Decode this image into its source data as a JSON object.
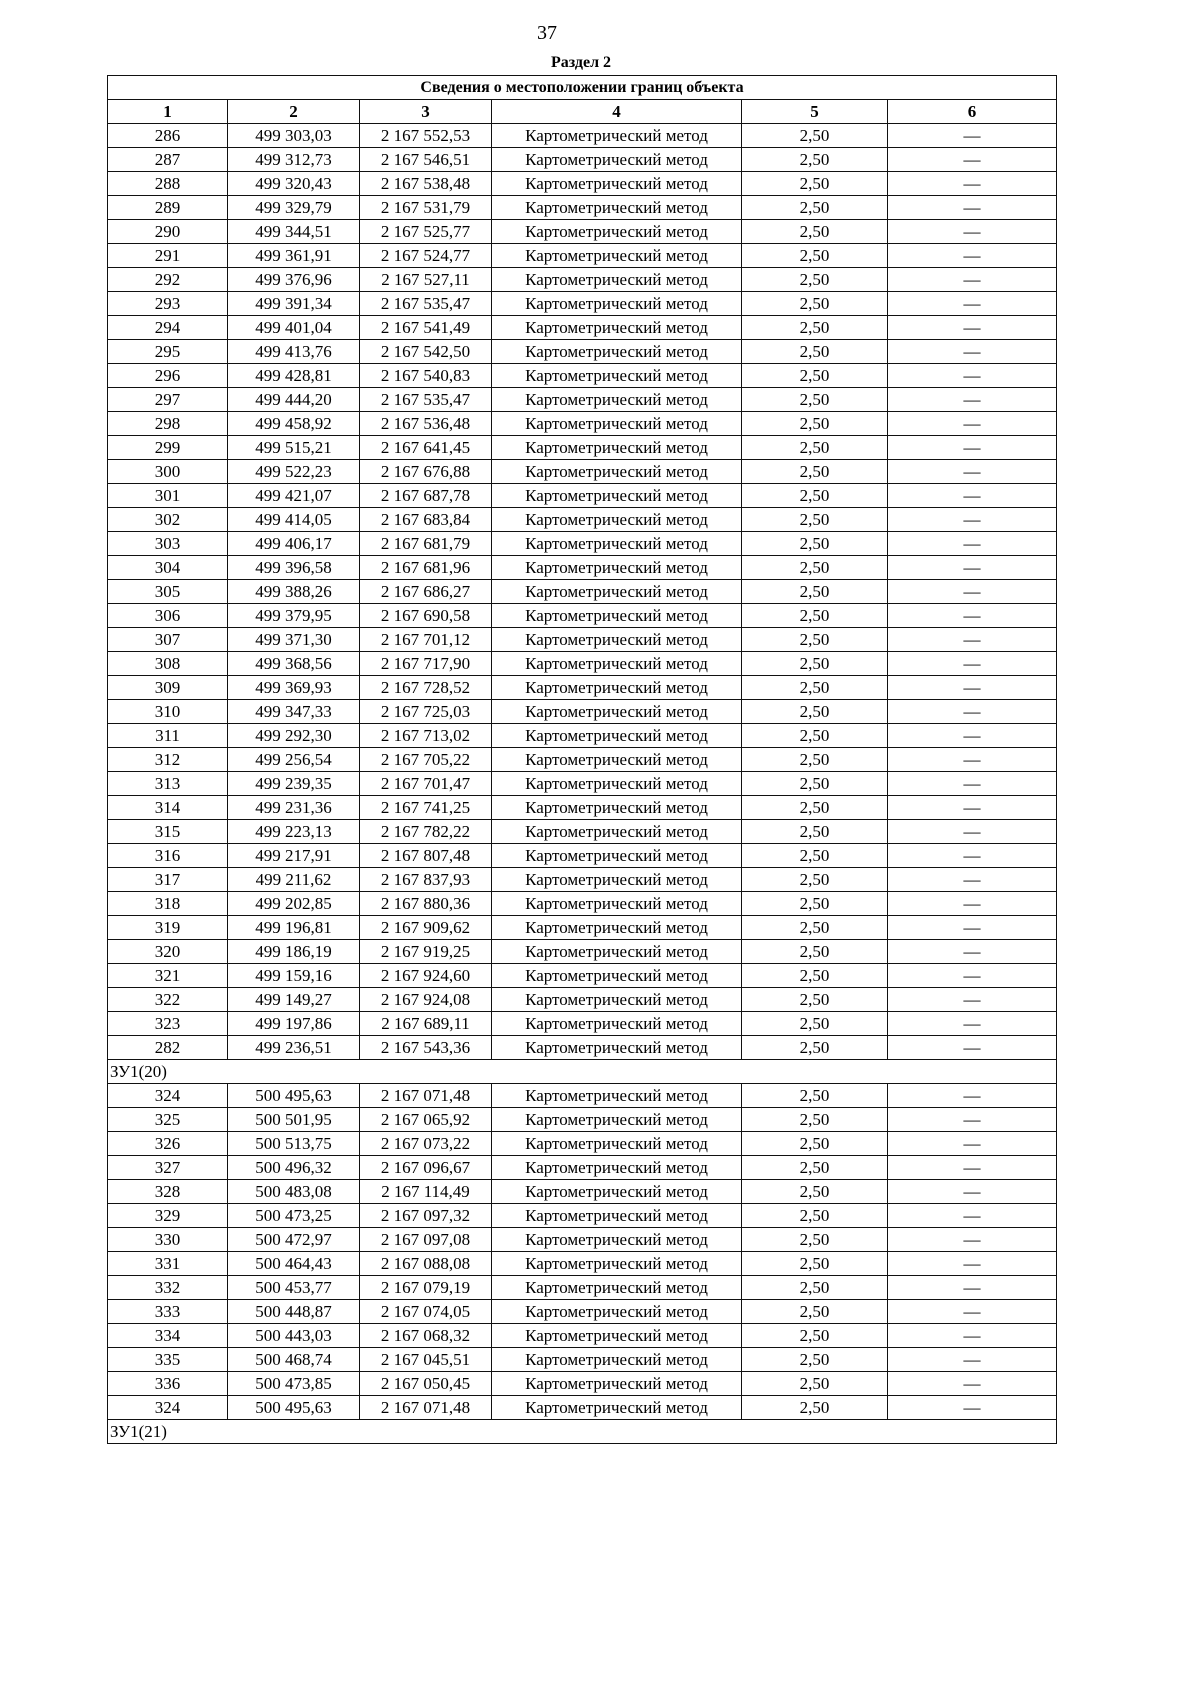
{
  "page_number": "37",
  "section": "Раздел 2",
  "table_title": "Сведения о местоположении границ объекта",
  "column_numbers": [
    "1",
    "2",
    "3",
    "4",
    "5",
    "6"
  ],
  "blocks": [
    {
      "group": null,
      "rows": [
        [
          "286",
          "499 303,03",
          "2 167 552,53",
          "Картометрический метод",
          "2,50",
          "—"
        ],
        [
          "287",
          "499 312,73",
          "2 167 546,51",
          "Картометрический метод",
          "2,50",
          "—"
        ],
        [
          "288",
          "499 320,43",
          "2 167 538,48",
          "Картометрический метод",
          "2,50",
          "—"
        ],
        [
          "289",
          "499 329,79",
          "2 167 531,79",
          "Картометрический метод",
          "2,50",
          "—"
        ],
        [
          "290",
          "499 344,51",
          "2 167 525,77",
          "Картометрический метод",
          "2,50",
          "—"
        ],
        [
          "291",
          "499 361,91",
          "2 167 524,77",
          "Картометрический метод",
          "2,50",
          "—"
        ],
        [
          "292",
          "499 376,96",
          "2 167 527,11",
          "Картометрический метод",
          "2,50",
          "—"
        ],
        [
          "293",
          "499 391,34",
          "2 167 535,47",
          "Картометрический метод",
          "2,50",
          "—"
        ],
        [
          "294",
          "499 401,04",
          "2 167 541,49",
          "Картометрический метод",
          "2,50",
          "—"
        ],
        [
          "295",
          "499 413,76",
          "2 167 542,50",
          "Картометрический метод",
          "2,50",
          "—"
        ],
        [
          "296",
          "499 428,81",
          "2 167 540,83",
          "Картометрический метод",
          "2,50",
          "—"
        ],
        [
          "297",
          "499 444,20",
          "2 167 535,47",
          "Картометрический метод",
          "2,50",
          "—"
        ],
        [
          "298",
          "499 458,92",
          "2 167 536,48",
          "Картометрический метод",
          "2,50",
          "—"
        ],
        [
          "299",
          "499 515,21",
          "2 167 641,45",
          "Картометрический метод",
          "2,50",
          "—"
        ],
        [
          "300",
          "499 522,23",
          "2 167 676,88",
          "Картометрический метод",
          "2,50",
          "—"
        ],
        [
          "301",
          "499 421,07",
          "2 167 687,78",
          "Картометрический метод",
          "2,50",
          "—"
        ],
        [
          "302",
          "499 414,05",
          "2 167 683,84",
          "Картометрический метод",
          "2,50",
          "—"
        ],
        [
          "303",
          "499 406,17",
          "2 167 681,79",
          "Картометрический метод",
          "2,50",
          "—"
        ],
        [
          "304",
          "499 396,58",
          "2 167 681,96",
          "Картометрический метод",
          "2,50",
          "—"
        ],
        [
          "305",
          "499 388,26",
          "2 167 686,27",
          "Картометрический метод",
          "2,50",
          "—"
        ],
        [
          "306",
          "499 379,95",
          "2 167 690,58",
          "Картометрический метод",
          "2,50",
          "—"
        ],
        [
          "307",
          "499 371,30",
          "2 167 701,12",
          "Картометрический метод",
          "2,50",
          "—"
        ],
        [
          "308",
          "499 368,56",
          "2 167 717,90",
          "Картометрический метод",
          "2,50",
          "—"
        ],
        [
          "309",
          "499 369,93",
          "2 167 728,52",
          "Картометрический метод",
          "2,50",
          "—"
        ],
        [
          "310",
          "499 347,33",
          "2 167 725,03",
          "Картометрический метод",
          "2,50",
          "—"
        ],
        [
          "311",
          "499 292,30",
          "2 167 713,02",
          "Картометрический метод",
          "2,50",
          "—"
        ],
        [
          "312",
          "499 256,54",
          "2 167 705,22",
          "Картометрический метод",
          "2,50",
          "—"
        ],
        [
          "313",
          "499 239,35",
          "2 167 701,47",
          "Картометрический метод",
          "2,50",
          "—"
        ],
        [
          "314",
          "499 231,36",
          "2 167 741,25",
          "Картометрический метод",
          "2,50",
          "—"
        ],
        [
          "315",
          "499 223,13",
          "2 167 782,22",
          "Картометрический метод",
          "2,50",
          "—"
        ],
        [
          "316",
          "499 217,91",
          "2 167 807,48",
          "Картометрический метод",
          "2,50",
          "—"
        ],
        [
          "317",
          "499 211,62",
          "2 167 837,93",
          "Картометрический метод",
          "2,50",
          "—"
        ],
        [
          "318",
          "499 202,85",
          "2 167 880,36",
          "Картометрический метод",
          "2,50",
          "—"
        ],
        [
          "319",
          "499 196,81",
          "2 167 909,62",
          "Картометрический метод",
          "2,50",
          "—"
        ],
        [
          "320",
          "499 186,19",
          "2 167 919,25",
          "Картометрический метод",
          "2,50",
          "—"
        ],
        [
          "321",
          "499 159,16",
          "2 167 924,60",
          "Картометрический метод",
          "2,50",
          "—"
        ],
        [
          "322",
          "499 149,27",
          "2 167 924,08",
          "Картометрический метод",
          "2,50",
          "—"
        ],
        [
          "323",
          "499 197,86",
          "2 167 689,11",
          "Картометрический метод",
          "2,50",
          "—"
        ],
        [
          "282",
          "499 236,51",
          "2 167 543,36",
          "Картометрический метод",
          "2,50",
          "—"
        ]
      ]
    },
    {
      "group": "ЗУ1(20)",
      "rows": [
        [
          "324",
          "500 495,63",
          "2 167 071,48",
          "Картометрический метод",
          "2,50",
          "—"
        ],
        [
          "325",
          "500 501,95",
          "2 167 065,92",
          "Картометрический метод",
          "2,50",
          "—"
        ],
        [
          "326",
          "500 513,75",
          "2 167 073,22",
          "Картометрический метод",
          "2,50",
          "—"
        ],
        [
          "327",
          "500 496,32",
          "2 167 096,67",
          "Картометрический метод",
          "2,50",
          "—"
        ],
        [
          "328",
          "500 483,08",
          "2 167 114,49",
          "Картометрический метод",
          "2,50",
          "—"
        ],
        [
          "329",
          "500 473,25",
          "2 167 097,32",
          "Картометрический метод",
          "2,50",
          "—"
        ],
        [
          "330",
          "500 472,97",
          "2 167 097,08",
          "Картометрический метод",
          "2,50",
          "—"
        ],
        [
          "331",
          "500 464,43",
          "2 167 088,08",
          "Картометрический метод",
          "2,50",
          "—"
        ],
        [
          "332",
          "500 453,77",
          "2 167 079,19",
          "Картометрический метод",
          "2,50",
          "—"
        ],
        [
          "333",
          "500 448,87",
          "2 167 074,05",
          "Картометрический метод",
          "2,50",
          "—"
        ],
        [
          "334",
          "500 443,03",
          "2 167 068,32",
          "Картометрический метод",
          "2,50",
          "—"
        ],
        [
          "335",
          "500 468,74",
          "2 167 045,51",
          "Картометрический метод",
          "2,50",
          "—"
        ],
        [
          "336",
          "500 473,85",
          "2 167 050,45",
          "Картометрический метод",
          "2,50",
          "—"
        ],
        [
          "324",
          "500 495,63",
          "2 167 071,48",
          "Картометрический метод",
          "2,50",
          "—"
        ]
      ]
    },
    {
      "group": "ЗУ1(21)",
      "rows": []
    }
  ]
}
